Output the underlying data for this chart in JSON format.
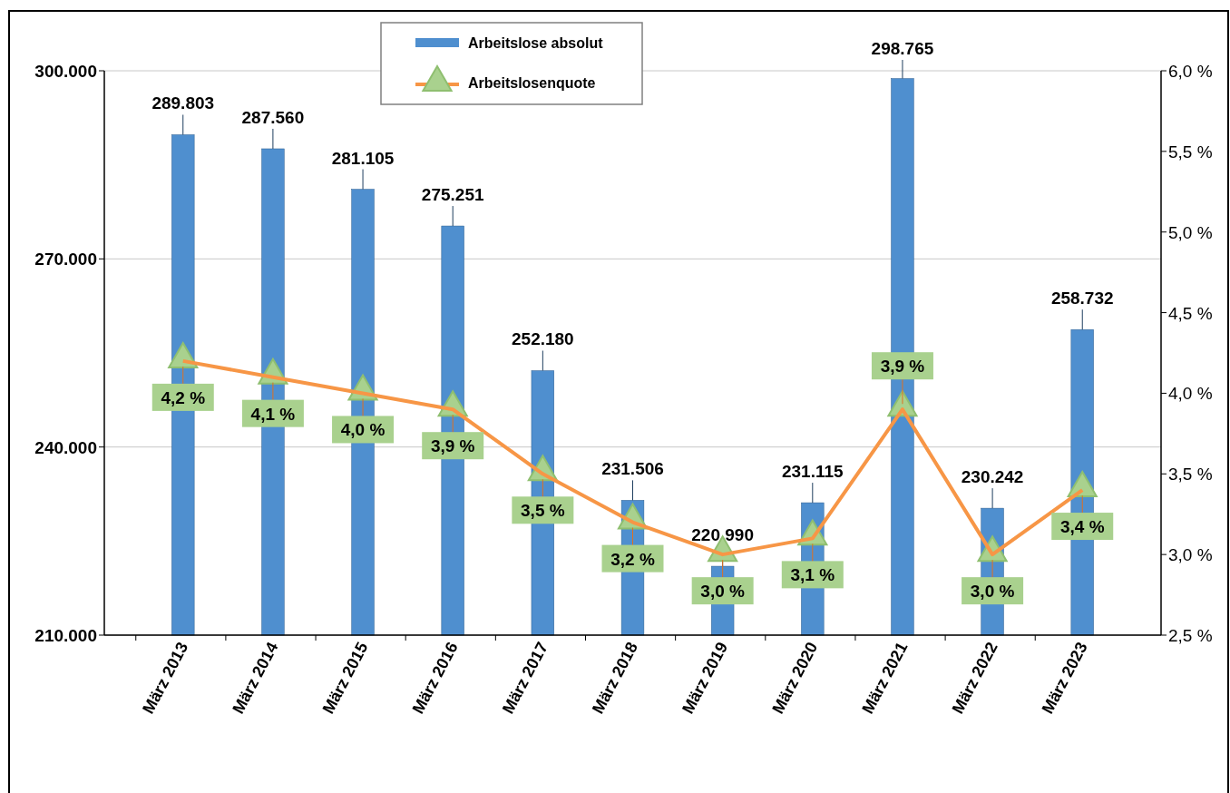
{
  "chart_data": {
    "type": "bar",
    "categories": [
      "März 2013",
      "März 2014",
      "März 2015",
      "März 2016",
      "März 2017",
      "März 2018",
      "März 2019",
      "März 2020",
      "März 2021",
      "März 2022",
      "März 2023"
    ],
    "series": [
      {
        "name": "Arbeitslose absolut",
        "color": "#4f8fcf",
        "values": [
          289803,
          287560,
          281105,
          275251,
          252180,
          231506,
          220990,
          231115,
          298765,
          230242,
          258732
        ],
        "value_labels": [
          "289.803",
          "287.560",
          "281.105",
          "275.251",
          "252.180",
          "231.506",
          "220.990",
          "231.115",
          "298.765",
          "230.242",
          "258.732"
        ]
      },
      {
        "name": "Arbeitslosenquote",
        "type": "line",
        "axis": "y2",
        "color": "#f79646",
        "values": [
          4.2,
          4.1,
          4.0,
          3.9,
          3.5,
          3.2,
          3.0,
          3.1,
          3.9,
          3.0,
          3.4
        ],
        "value_labels": [
          "4,2 %",
          "4,1 %",
          "4,0 %",
          "3,9 %",
          "3,5 %",
          "3,2 %",
          "3,0 %",
          "3,1 %",
          "3,9 %",
          "3,0 %",
          "3,4 %"
        ]
      }
    ],
    "ylim": [
      210000,
      300000
    ],
    "yticks": [
      {
        "value": 210000,
        "label": "210.000"
      },
      {
        "value": 240000,
        "label": "240.000"
      },
      {
        "value": 270000,
        "label": "270.000"
      },
      {
        "value": 300000,
        "label": "300.000"
      }
    ],
    "y2lim": [
      2.5,
      6.0
    ],
    "y2ticks": [
      {
        "value": 2.5,
        "label": "2,5 %"
      },
      {
        "value": 3.0,
        "label": "3,0 %"
      },
      {
        "value": 3.5,
        "label": "3,5 %"
      },
      {
        "value": 4.0,
        "label": "4,0 %"
      },
      {
        "value": 4.5,
        "label": "4,5 %"
      },
      {
        "value": 5.0,
        "label": "5,0 %"
      },
      {
        "value": 5.5,
        "label": "5,5 %"
      },
      {
        "value": 6.0,
        "label": "6,0 %"
      }
    ],
    "grid": "y",
    "legend": "top",
    "marker": "triangle"
  }
}
